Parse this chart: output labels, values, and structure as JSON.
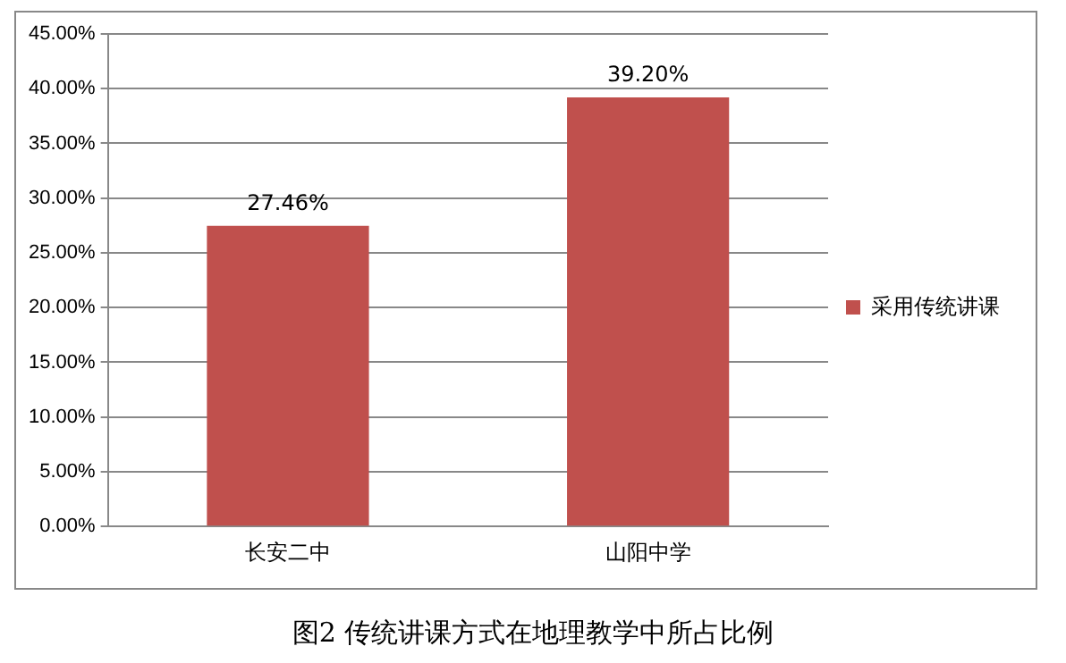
{
  "chart_data": {
    "type": "bar",
    "title": "图2 传统讲课方式在地理教学中所占比例",
    "categories": [
      "长安二中",
      "山阳中学"
    ],
    "series": [
      {
        "name": "采用传统讲课",
        "color": "#c0504d",
        "values": [
          27.46,
          39.2
        ],
        "value_labels": [
          "27.46%",
          "39.20%"
        ]
      }
    ],
    "ylim": [
      0,
      45
    ],
    "yticks": [
      {
        "value": 0,
        "label": "0.00%"
      },
      {
        "value": 5,
        "label": "5.00%"
      },
      {
        "value": 10,
        "label": "10.00%"
      },
      {
        "value": 15,
        "label": "15.00%"
      },
      {
        "value": 20,
        "label": "20.00%"
      },
      {
        "value": 25,
        "label": "25.00%"
      },
      {
        "value": 30,
        "label": "30.00%"
      },
      {
        "value": 35,
        "label": "35.00%"
      },
      {
        "value": 40,
        "label": "40.00%"
      },
      {
        "value": 45,
        "label": "45.00%"
      }
    ],
    "grid": "y",
    "legend": "right"
  }
}
